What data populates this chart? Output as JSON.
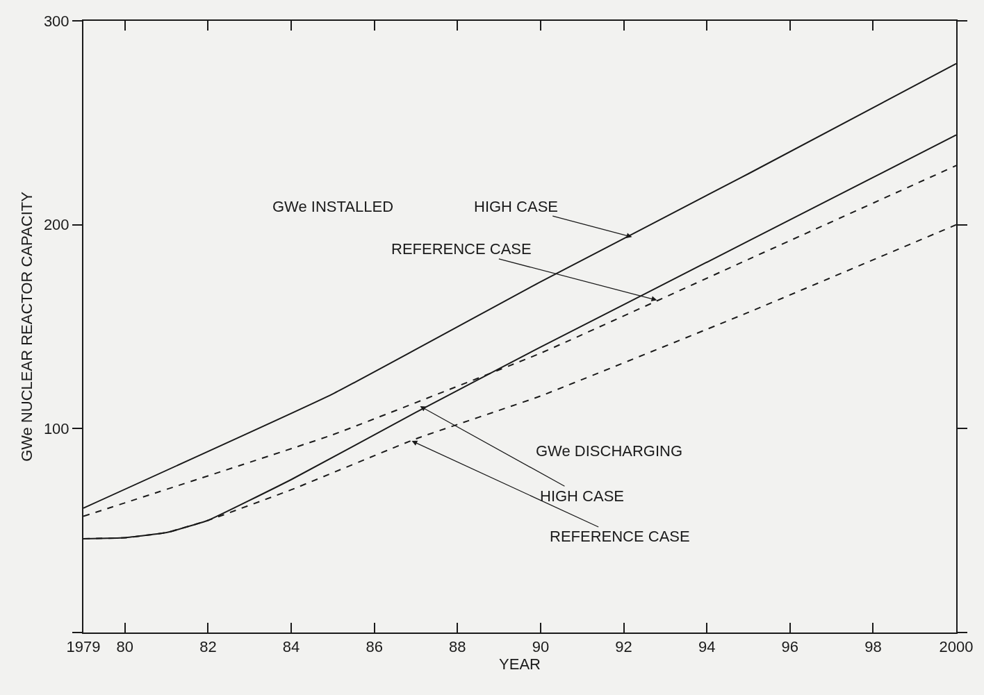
{
  "chart_data": {
    "type": "line",
    "xlabel": "YEAR",
    "ylabel": "GWe NUCLEAR REACTOR CAPACITY",
    "series": [
      {
        "color": "#1a1a1a",
        "line_style": "solid",
        "x": [
          1979,
          1985,
          1990,
          1995,
          2000
        ],
        "values": [
          61,
          117,
          172,
          225,
          279
        ]
      },
      {
        "color": "#1a1a1a",
        "line_style": "dashed",
        "x": [
          1979,
          1985,
          1990,
          1995,
          2000
        ],
        "values": [
          57,
          97,
          137,
          183,
          229
        ]
      },
      {
        "color": "#1a1a1a",
        "line_style": "solid",
        "x": [
          1979,
          1980,
          1981,
          1982,
          1984,
          1987,
          1990,
          1995,
          2000
        ],
        "values": [
          46,
          46.5,
          49,
          55,
          75,
          108,
          140,
          192,
          244
        ]
      },
      {
        "color": "#1a1a1a",
        "line_style": "dashed",
        "x": [
          1979,
          1980,
          1981,
          1982,
          1984,
          1987,
          1990,
          1995,
          2000
        ],
        "values": [
          46,
          46.5,
          49,
          55,
          70,
          95,
          116,
          157,
          200
        ]
      }
    ],
    "annotations": [
      "GWe INSTALLED",
      {
        "text": "HIGH CASE",
        "x": 1992.2,
        "y": 194
      },
      {
        "text": "REFERENCE CASE",
        "x": 1992.8,
        "y": 163
      },
      "GWe DISCHARGING",
      {
        "text": "HIGH CASE",
        "x": 1987.1,
        "y": 111
      },
      {
        "text": "REFERENCE CASE",
        "x": 1986.9,
        "y": 94
      }
    ],
    "xlim": [
      1979,
      2000
    ],
    "ylim": [
      0,
      300
    ],
    "xticks": [
      1979,
      {
        "value": 1980,
        "label": "80"
      },
      {
        "value": 1982,
        "label": "82"
      },
      {
        "value": 1984,
        "label": "84"
      },
      {
        "value": 1986,
        "label": "86"
      },
      {
        "value": 1988,
        "label": "88"
      },
      {
        "value": 1990,
        "label": "90"
      },
      {
        "value": 1992,
        "label": "92"
      },
      {
        "value": 1994,
        "label": "94"
      },
      {
        "value": 1996,
        "label": "96"
      },
      {
        "value": 1998,
        "label": "98"
      },
      2000
    ],
    "yticks": [
      {
        "value": 0,
        "label": null
      },
      100,
      200,
      300
    ],
    "grid": false,
    "marker": "none"
  }
}
